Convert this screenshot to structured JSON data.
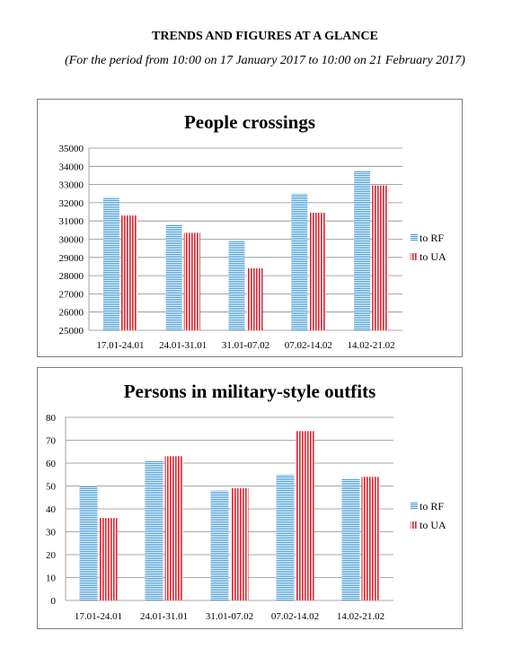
{
  "header": {
    "title": "TRENDS AND FIGURES AT A GLANCE",
    "subtitle": "(For the period from 10:00 on 17 January 2017 to 10:00 on 21 February 2017)"
  },
  "colors": {
    "to_rf": "#4a9fd8",
    "to_ua": "#e8202a"
  },
  "chart_data": [
    {
      "type": "bar",
      "title": "People crossings",
      "categories": [
        "17.01-24.01",
        "24.01-31.01",
        "31.01-07.02",
        "07.02-14.02",
        "14.02-21.02"
      ],
      "series": [
        {
          "name": "to RF",
          "values": [
            32300,
            30800,
            29900,
            32500,
            33750
          ]
        },
        {
          "name": "to UA",
          "values": [
            31300,
            30350,
            28400,
            31450,
            32950
          ]
        }
      ],
      "ylim": [
        25000,
        35000
      ],
      "yticks": [
        "25000",
        "26000",
        "27000",
        "28000",
        "29000",
        "30000",
        "31000",
        "32000",
        "33000",
        "34000",
        "35000"
      ],
      "grid": true,
      "legend": "right"
    },
    {
      "type": "bar",
      "title": "Persons in military-style outfits",
      "categories": [
        "17.01-24.01",
        "24.01-31.01",
        "31.01-07.02",
        "07.02-14.02",
        "14.02-21.02"
      ],
      "series": [
        {
          "name": "to RF",
          "values": [
            50,
            61,
            48,
            55,
            53
          ]
        },
        {
          "name": "to UA",
          "values": [
            36,
            63,
            49,
            74,
            54
          ]
        }
      ],
      "ylim": [
        0,
        80
      ],
      "yticks": [
        "0",
        "10",
        "20",
        "30",
        "40",
        "50",
        "60",
        "70",
        "80"
      ],
      "grid": true,
      "legend": "right"
    }
  ]
}
